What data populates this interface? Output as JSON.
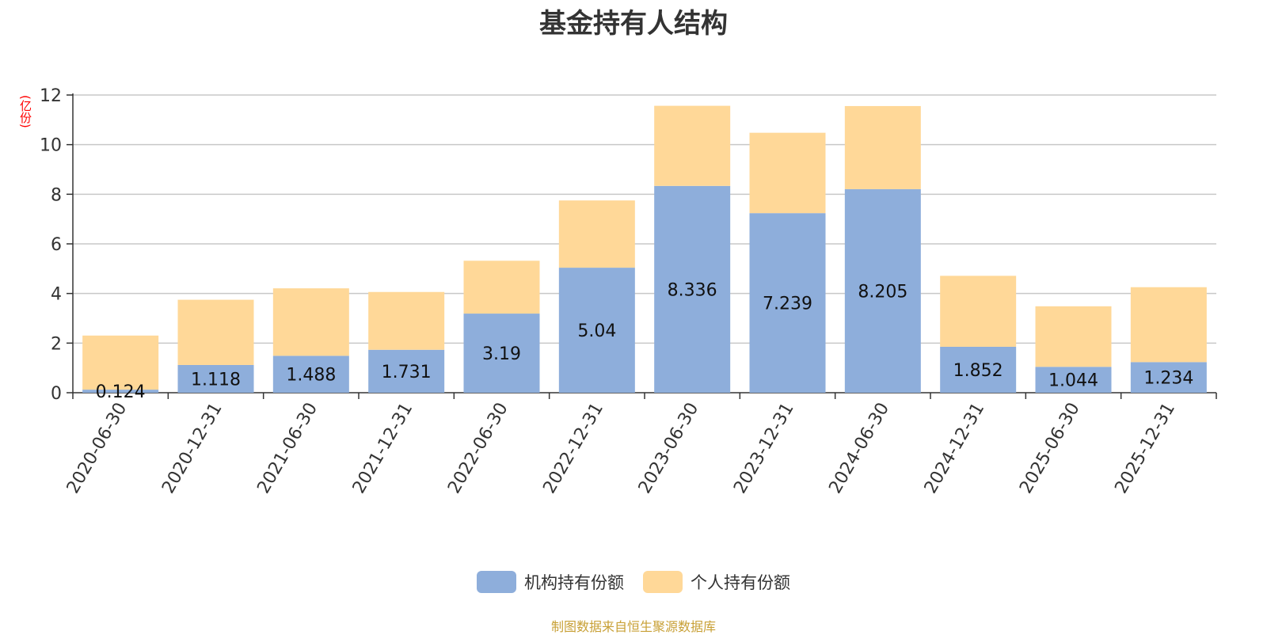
{
  "chart_data": {
    "type": "bar",
    "stacked": true,
    "title": "基金持有人结构",
    "unit_label": "(亿份)",
    "categories": [
      "2020-06-30",
      "2020-12-31",
      "2021-06-30",
      "2021-12-31",
      "2022-06-30",
      "2022-12-31",
      "2023-06-30",
      "2023-12-31",
      "2024-06-30",
      "2024-12-31",
      "2025-06-30",
      "2025-12-31"
    ],
    "series": [
      {
        "name": "机构持有份额",
        "color": "#8eaedb",
        "values": [
          0.124,
          1.118,
          1.488,
          1.731,
          3.19,
          5.04,
          8.336,
          7.239,
          8.205,
          1.852,
          1.044,
          1.234
        ]
      },
      {
        "name": "个人持有份额",
        "color": "#ffd898",
        "values": [
          2.18,
          2.63,
          2.72,
          2.33,
          2.13,
          2.71,
          3.23,
          3.24,
          3.35,
          2.86,
          2.44,
          3.02
        ]
      }
    ],
    "data_labels": [
      "0.124",
      "1.118",
      "1.488",
      "1.731",
      "3.19",
      "5.04",
      "8.336",
      "7.239",
      "8.205",
      "1.852",
      "1.044",
      "1.234"
    ],
    "ylim": [
      0,
      12
    ],
    "yticks": [
      "0",
      "2",
      "4",
      "6",
      "8",
      "10",
      "12"
    ],
    "grid": true,
    "legend_position": "bottom"
  },
  "source_note": "制图数据来自恒生聚源数据库"
}
